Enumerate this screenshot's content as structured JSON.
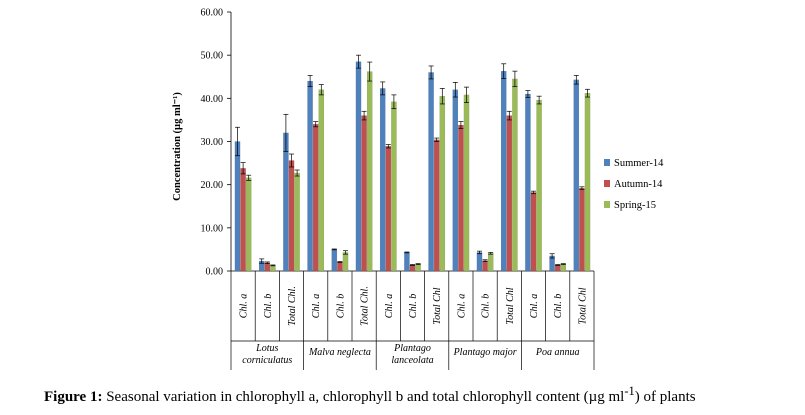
{
  "chart_data": {
    "type": "bar",
    "ylabel": "Concentration (µg ml⁻¹)",
    "ylim": [
      0,
      60
    ],
    "yticks": [
      "0.00",
      "10.00",
      "20.00",
      "30.00",
      "40.00",
      "50.00",
      "60.00"
    ],
    "yticks_values": [
      0,
      10,
      20,
      30,
      40,
      50,
      60
    ],
    "groups": [
      {
        "label": "Lotus corniculatus",
        "lines": [
          "Lotus",
          "corniculatus"
        ]
      },
      {
        "label": "Malva neglecta",
        "lines": [
          "Malva neglecta"
        ]
      },
      {
        "label": "Plantago lanceolata",
        "lines": [
          "Plantago",
          "lanceolata"
        ]
      },
      {
        "label": "Plantago major",
        "lines": [
          "Plantago major"
        ]
      },
      {
        "label": "Poa annua",
        "lines": [
          "Poa annua"
        ]
      }
    ],
    "categories": [
      "Chl. a",
      "Chl. b",
      "Total Chl.",
      "Chl. a",
      "Chl. b",
      "Total Chl.",
      "Chl. a",
      "Chl. b",
      "Total Chl",
      "Chl. a",
      "Chl. b",
      "Total Chl",
      "Chl. a",
      "Chl. b",
      "Total Chl"
    ],
    "series": [
      {
        "name": "Summer-14",
        "color": "#4F81BD",
        "values": [
          30.0,
          2.3,
          32.0,
          44.0,
          5.0,
          48.5,
          42.3,
          4.3,
          46.0,
          42.0,
          4.3,
          46.3,
          41.0,
          3.5,
          44.3
        ],
        "errors": [
          3.3,
          0.5,
          4.3,
          1.3,
          0.1,
          1.5,
          1.5,
          0.1,
          1.5,
          1.7,
          0.3,
          1.7,
          0.8,
          0.5,
          1.0
        ]
      },
      {
        "name": "Autumn-14",
        "color": "#C0504D",
        "values": [
          23.8,
          1.9,
          25.6,
          34.0,
          2.1,
          36.0,
          28.9,
          1.4,
          30.4,
          33.8,
          2.4,
          36.0,
          18.2,
          1.4,
          19.2
        ],
        "errors": [
          1.3,
          0.2,
          1.5,
          0.6,
          0.1,
          1.0,
          0.4,
          0.1,
          0.4,
          0.8,
          0.2,
          1.0,
          0.3,
          0.1,
          0.3
        ]
      },
      {
        "name": "Spring-15",
        "color": "#9BBB59",
        "values": [
          21.6,
          1.3,
          22.7,
          42.0,
          4.3,
          46.2,
          39.2,
          1.6,
          40.5,
          40.8,
          4.1,
          44.5,
          39.6,
          1.6,
          41.2
        ],
        "errors": [
          0.6,
          0.1,
          0.7,
          1.2,
          0.4,
          2.2,
          1.6,
          0.1,
          1.8,
          1.8,
          0.2,
          1.8,
          0.9,
          0.1,
          0.9
        ]
      }
    ],
    "legend_position": "right",
    "grid": false
  },
  "caption": {
    "label": "Figure 1:",
    "text": " Seasonal variation in chlorophyll a, chlorophyll b and total chlorophyll content (µg ml",
    "sup": "-1",
    "tail": ") of plants"
  }
}
